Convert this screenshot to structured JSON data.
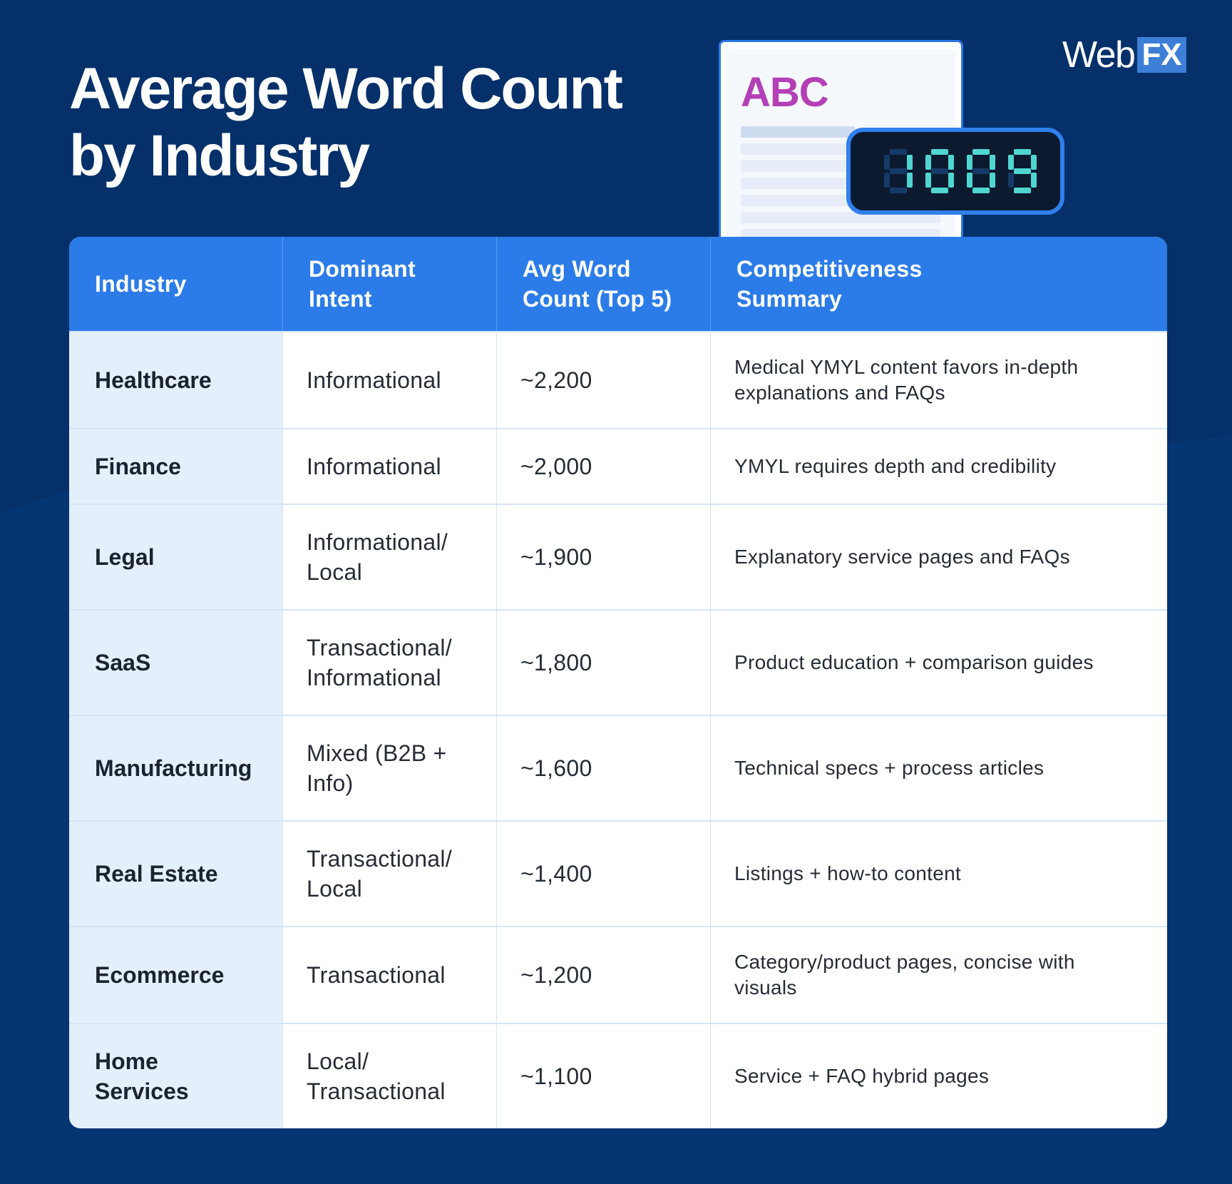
{
  "header": {
    "title_line1": "Average Word Count",
    "title_line2": "by Industry"
  },
  "logo": {
    "web": "Web",
    "fx": "FX"
  },
  "illustration": {
    "doc_label": "ABC",
    "counter_icon": "seven-segment-counter-icon",
    "doc_label_color": "#b43fb6",
    "counter_digit_color": "#4fd6d1"
  },
  "colors": {
    "background": "#05306a",
    "header": "#2b7ce8",
    "first_column": "#e4effc"
  },
  "chart_data": {
    "type": "table",
    "columns": [
      "Industry",
      "Dominant Intent",
      "Avg Word Count (Top 5)",
      "Competitiveness Summary"
    ],
    "rows": [
      {
        "industry": "Healthcare",
        "intent": "Informational",
        "word_count": "~2,200",
        "summary": "Medical YMYL content favors in-depth explanations and FAQs"
      },
      {
        "industry": "Finance",
        "intent": "Informational",
        "word_count": "~2,000",
        "summary": "YMYL requires depth and credibility"
      },
      {
        "industry": "Legal",
        "intent": "Informational/ Local",
        "word_count": "~1,900",
        "summary": "Explanatory service pages and FAQs"
      },
      {
        "industry": "SaaS",
        "intent": "Transactional/ Informational",
        "word_count": "~1,800",
        "summary": "Product education + comparison guides"
      },
      {
        "industry": "Manufacturing",
        "intent": "Mixed (B2B + Info)",
        "word_count": "~1,600",
        "summary": "Technical specs + process articles"
      },
      {
        "industry": "Real Estate",
        "intent": "Transactional/ Local",
        "word_count": "~1,400",
        "summary": "Listings + how-to content"
      },
      {
        "industry": "Ecommerce",
        "intent": "Transactional",
        "word_count": "~1,200",
        "summary": "Category/product pages, concise with visuals"
      },
      {
        "industry": "Home Services",
        "intent": "Local/ Transactional",
        "word_count": "~1,100",
        "summary": "Service + FAQ hybrid pages"
      }
    ]
  }
}
